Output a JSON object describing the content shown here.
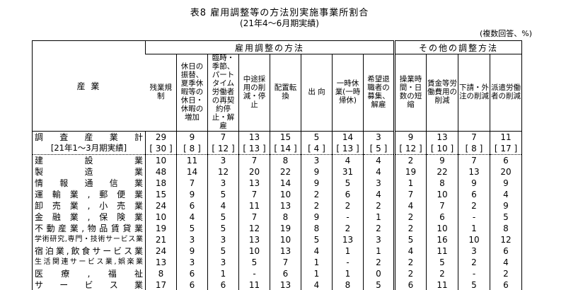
{
  "page": {
    "title": "表8 雇用調整等の方法別実施事業所割合",
    "subtitle": "(21年4〜6月期実績)",
    "note": "(複数回答、%)"
  },
  "table": {
    "corner_header": "産  業",
    "group_headers": [
      {
        "label": "雇用調整の方法",
        "colspan": 8
      },
      {
        "label": "その他の調整方法",
        "colspan": 4
      }
    ],
    "column_headers": [
      "残業規制",
      "休日の振替、夏季休暇等の休日・休暇の増加",
      "臨時・季節、パートタイム労働者の再契約停止・解雇",
      "中途採用の削減・停止",
      "配置転換",
      "出 向",
      "一時休業(一時帰休)",
      "希望退職者の募集、解雇",
      "操業時間・日数の短縮",
      "賃金等労働費用の削減",
      "下請・外注の削減",
      "派遣労働者の削減"
    ],
    "rows": [
      {
        "label": "調査産業計",
        "style": "total",
        "values": [
          "29",
          "9",
          "7",
          "13",
          "15",
          "5",
          "14",
          "3",
          "9",
          "13",
          "7",
          "11"
        ]
      },
      {
        "label": "[21年1〜3月期実績]",
        "style": "bracket",
        "values": [
          "[ 30 ]",
          "[ 8 ]",
          "[ 12 ]",
          "[ 13 ]",
          "[ 14 ]",
          "[ 4 ]",
          "[ 13 ]",
          "[ 5 ]",
          "[ 12 ]",
          "[ 10 ]",
          "[ 8 ]",
          "[ 17 ]"
        ]
      },
      {
        "label": "建設業",
        "values": [
          "10",
          "11",
          "3",
          "7",
          "8",
          "3",
          "4",
          "4",
          "2",
          "9",
          "7",
          "6"
        ]
      },
      {
        "label": "製造業",
        "values": [
          "48",
          "14",
          "12",
          "20",
          "22",
          "9",
          "31",
          "4",
          "19",
          "22",
          "13",
          "20"
        ]
      },
      {
        "label": "情報通信業",
        "values": [
          "18",
          "7",
          "3",
          "13",
          "14",
          "9",
          "5",
          "3",
          "1",
          "8",
          "9",
          "9"
        ]
      },
      {
        "label": "運輸業,郵便業",
        "values": [
          "15",
          "9",
          "5",
          "7",
          "10",
          "2",
          "6",
          "4",
          "7",
          "10",
          "6",
          "4"
        ]
      },
      {
        "label": "卸売業,小売業",
        "values": [
          "24",
          "6",
          "4",
          "11",
          "13",
          "2",
          "2",
          "2",
          "4",
          "7",
          "2",
          "9"
        ]
      },
      {
        "label": "金融業,保険業",
        "values": [
          "10",
          "4",
          "5",
          "7",
          "8",
          "9",
          "-",
          "1",
          "2",
          "6",
          "-",
          "5"
        ]
      },
      {
        "label": "不動産業,物品賃貸業",
        "values": [
          "19",
          "5",
          "5",
          "12",
          "19",
          "8",
          "2",
          "2",
          "2",
          "10",
          "1",
          "8"
        ]
      },
      {
        "label": "学術研究,専門・技術サービス業",
        "values": [
          "21",
          "3",
          "3",
          "13",
          "10",
          "5",
          "13",
          "3",
          "5",
          "16",
          "10",
          "12"
        ]
      },
      {
        "label": "宿泊業,飲食サービス業",
        "values": [
          "24",
          "9",
          "5",
          "10",
          "13",
          "4",
          "1",
          "1",
          "4",
          "11",
          "3",
          "6"
        ]
      },
      {
        "label": "生活関連サービス業,娯楽業",
        "values": [
          "13",
          "3",
          "3",
          "5",
          "7",
          "1",
          "-",
          "2",
          "2",
          "5",
          "2",
          "4"
        ]
      },
      {
        "label": "医療,福祉",
        "values": [
          "8",
          "6",
          "1",
          "-",
          "6",
          "1",
          "1",
          "0",
          "2",
          "2",
          "-",
          "2"
        ]
      },
      {
        "label": "サービス業",
        "values": [
          "17",
          "6",
          "6",
          "11",
          "13",
          "4",
          "8",
          "5",
          "6",
          "11",
          "5",
          "6"
        ]
      }
    ]
  }
}
